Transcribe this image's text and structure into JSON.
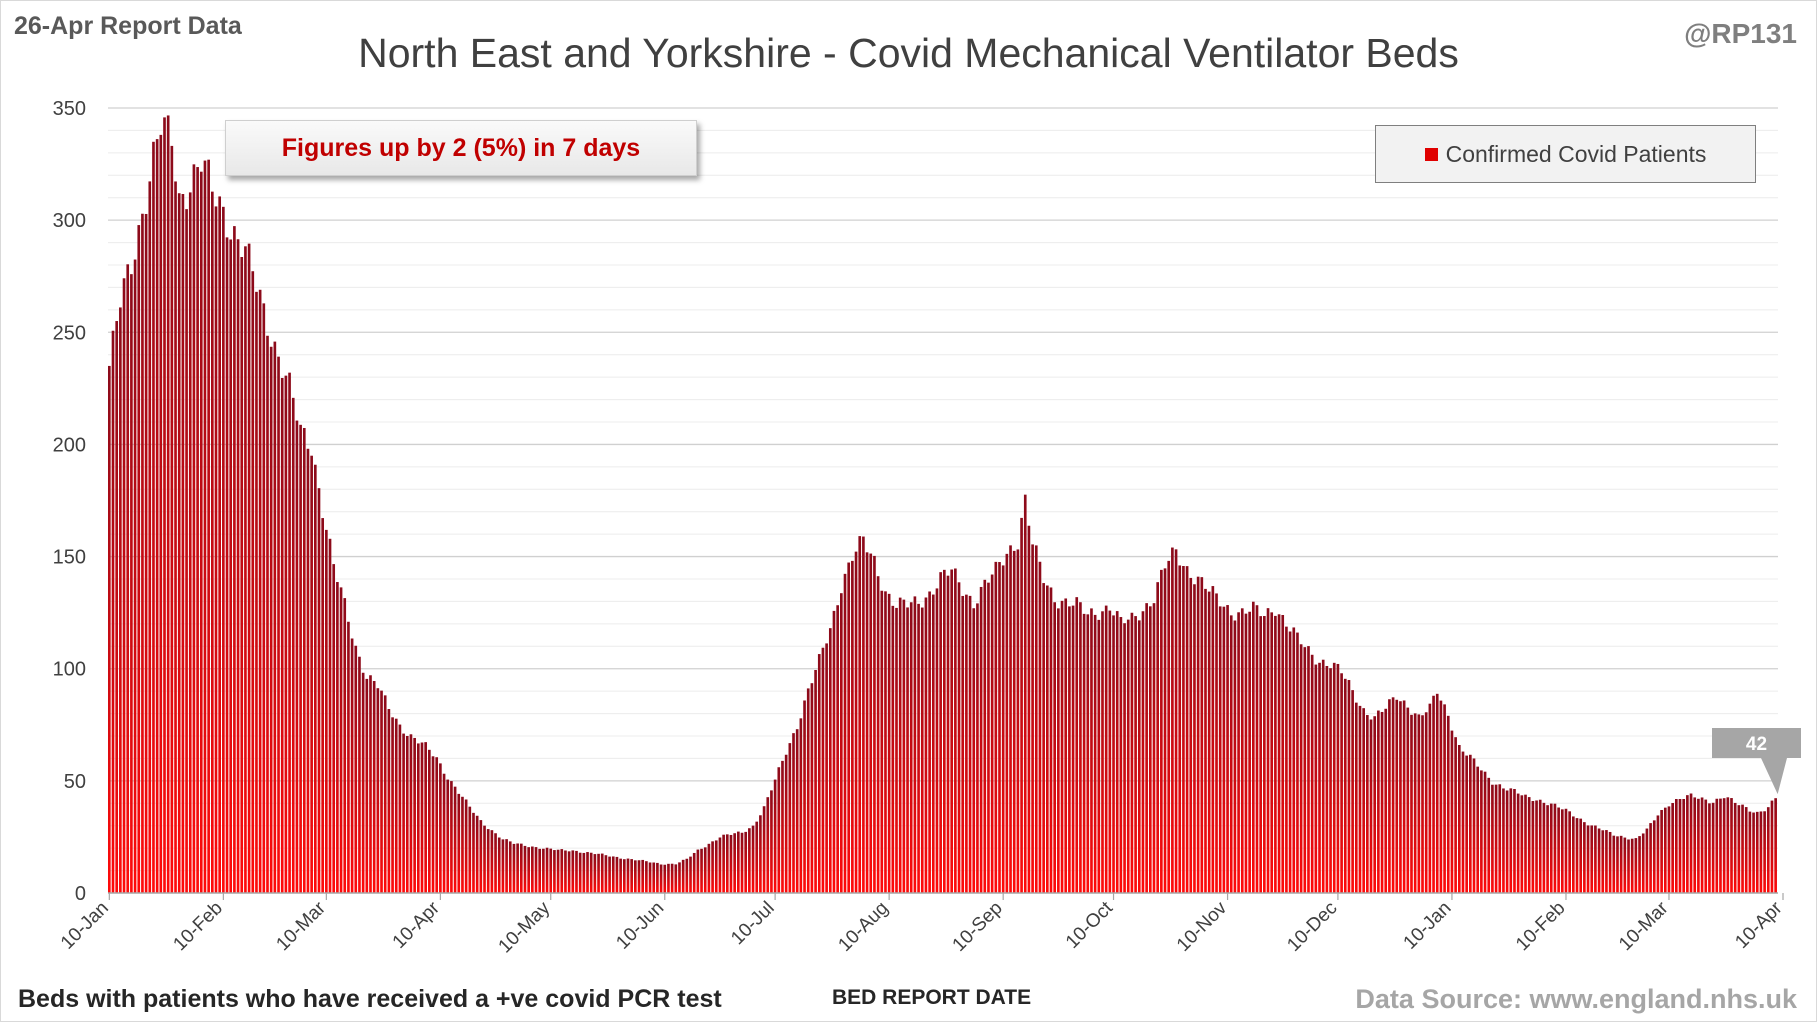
{
  "header": {
    "report_label": "26-Apr Report Data",
    "handle": "@RP131"
  },
  "annotation": "Figures up by 2 (5%) in 7 days",
  "footer": {
    "footnote": "Beds with patients who have received a +ve covid PCR test",
    "source": "Data Source: www.england.nhs.uk"
  },
  "colors": {
    "bar_top": "#8b0a1a",
    "bar_bottom": "#ff0a0a",
    "legend_swatch": "#e00000",
    "annotation_text": "#c00000",
    "callout": "#a6a6a6"
  },
  "chart_data": {
    "type": "bar",
    "title": "North East and Yorkshire - Covid Mechanical Ventilator Beds",
    "xlabel": "BED REPORT DATE",
    "ylabel": "",
    "ylim": [
      0,
      350
    ],
    "yticks": [
      0,
      50,
      100,
      150,
      200,
      250,
      300,
      350
    ],
    "grid": true,
    "legend_position": "top-right",
    "x_ticks": [
      "10-Jan",
      "10-Feb",
      "10-Mar",
      "10-Apr",
      "10-May",
      "10-Jun",
      "10-Jul",
      "10-Aug",
      "10-Sep",
      "10-Oct",
      "10-Nov",
      "10-Dec",
      "10-Jan",
      "10-Feb",
      "10-Mar",
      "10-Apr"
    ],
    "x_tick_days": [
      0,
      31,
      59,
      90,
      120,
      151,
      181,
      212,
      243,
      273,
      304,
      334,
      365,
      396,
      424,
      455
    ],
    "last_value_label": "42",
    "series": [
      {
        "name": "Confirmed Covid Patients",
        "anchors": [
          [
            0,
            235
          ],
          [
            3,
            262
          ],
          [
            6,
            280
          ],
          [
            9,
            305
          ],
          [
            12,
            328
          ],
          [
            14,
            340
          ],
          [
            17,
            335
          ],
          [
            19,
            310
          ],
          [
            22,
            318
          ],
          [
            25,
            325
          ],
          [
            28,
            312
          ],
          [
            31,
            305
          ],
          [
            34,
            295
          ],
          [
            37,
            285
          ],
          [
            40,
            270
          ],
          [
            43,
            255
          ],
          [
            46,
            240
          ],
          [
            49,
            225
          ],
          [
            52,
            205
          ],
          [
            55,
            200
          ],
          [
            58,
            172
          ],
          [
            61,
            145
          ],
          [
            64,
            128
          ],
          [
            67,
            110
          ],
          [
            70,
            97
          ],
          [
            73,
            92
          ],
          [
            76,
            82
          ],
          [
            79,
            75
          ],
          [
            82,
            70
          ],
          [
            86,
            65
          ],
          [
            89,
            60
          ],
          [
            92,
            52
          ],
          [
            95,
            45
          ],
          [
            98,
            38
          ],
          [
            101,
            32
          ],
          [
            104,
            28
          ],
          [
            107,
            24
          ],
          [
            110,
            22
          ],
          [
            114,
            21
          ],
          [
            118,
            20
          ],
          [
            122,
            19
          ],
          [
            126,
            19
          ],
          [
            130,
            18
          ],
          [
            134,
            17
          ],
          [
            138,
            16
          ],
          [
            142,
            15
          ],
          [
            146,
            14
          ],
          [
            150,
            13
          ],
          [
            154,
            13
          ],
          [
            157,
            15
          ],
          [
            160,
            19
          ],
          [
            163,
            22
          ],
          [
            166,
            25
          ],
          [
            169,
            26
          ],
          [
            172,
            27
          ],
          [
            175,
            30
          ],
          [
            178,
            38
          ],
          [
            181,
            50
          ],
          [
            184,
            63
          ],
          [
            187,
            75
          ],
          [
            190,
            90
          ],
          [
            193,
            103
          ],
          [
            196,
            118
          ],
          [
            199,
            138
          ],
          [
            202,
            150
          ],
          [
            205,
            156
          ],
          [
            208,
            148
          ],
          [
            211,
            135
          ],
          [
            214,
            128
          ],
          [
            217,
            128
          ],
          [
            220,
            130
          ],
          [
            223,
            134
          ],
          [
            226,
            140
          ],
          [
            229,
            143
          ],
          [
            232,
            136
          ],
          [
            235,
            130
          ],
          [
            238,
            137
          ],
          [
            241,
            143
          ],
          [
            244,
            152
          ],
          [
            247,
            158
          ],
          [
            249,
            175
          ],
          [
            251,
            155
          ],
          [
            254,
            140
          ],
          [
            257,
            132
          ],
          [
            260,
            130
          ],
          [
            263,
            128
          ],
          [
            266,
            124
          ],
          [
            269,
            126
          ],
          [
            272,
            128
          ],
          [
            275,
            120
          ],
          [
            278,
            122
          ],
          [
            281,
            127
          ],
          [
            284,
            132
          ],
          [
            287,
            145
          ],
          [
            290,
            152
          ],
          [
            293,
            145
          ],
          [
            296,
            140
          ],
          [
            299,
            134
          ],
          [
            302,
            130
          ],
          [
            305,
            126
          ],
          [
            308,
            125
          ],
          [
            311,
            126
          ],
          [
            314,
            124
          ],
          [
            317,
            128
          ],
          [
            320,
            120
          ],
          [
            323,
            113
          ],
          [
            326,
            108
          ],
          [
            329,
            104
          ],
          [
            332,
            102
          ],
          [
            335,
            98
          ],
          [
            338,
            90
          ],
          [
            341,
            82
          ],
          [
            344,
            78
          ],
          [
            347,
            82
          ],
          [
            350,
            88
          ],
          [
            353,
            84
          ],
          [
            356,
            78
          ],
          [
            359,
            82
          ],
          [
            361,
            90
          ],
          [
            364,
            80
          ],
          [
            367,
            65
          ],
          [
            370,
            60
          ],
          [
            373,
            55
          ],
          [
            376,
            50
          ],
          [
            379,
            47
          ],
          [
            382,
            45
          ],
          [
            385,
            43
          ],
          [
            388,
            42
          ],
          [
            391,
            40
          ],
          [
            394,
            38
          ],
          [
            397,
            36
          ],
          [
            400,
            33
          ],
          [
            403,
            30
          ],
          [
            406,
            28
          ],
          [
            409,
            26
          ],
          [
            412,
            25
          ],
          [
            415,
            24
          ],
          [
            418,
            28
          ],
          [
            421,
            35
          ],
          [
            424,
            40
          ],
          [
            427,
            42
          ],
          [
            430,
            43
          ],
          [
            433,
            42
          ],
          [
            436,
            41
          ],
          [
            439,
            43
          ],
          [
            442,
            40
          ],
          [
            445,
            38
          ],
          [
            448,
            36
          ],
          [
            451,
            38
          ],
          [
            452,
            40
          ],
          [
            453,
            42
          ]
        ]
      }
    ]
  }
}
